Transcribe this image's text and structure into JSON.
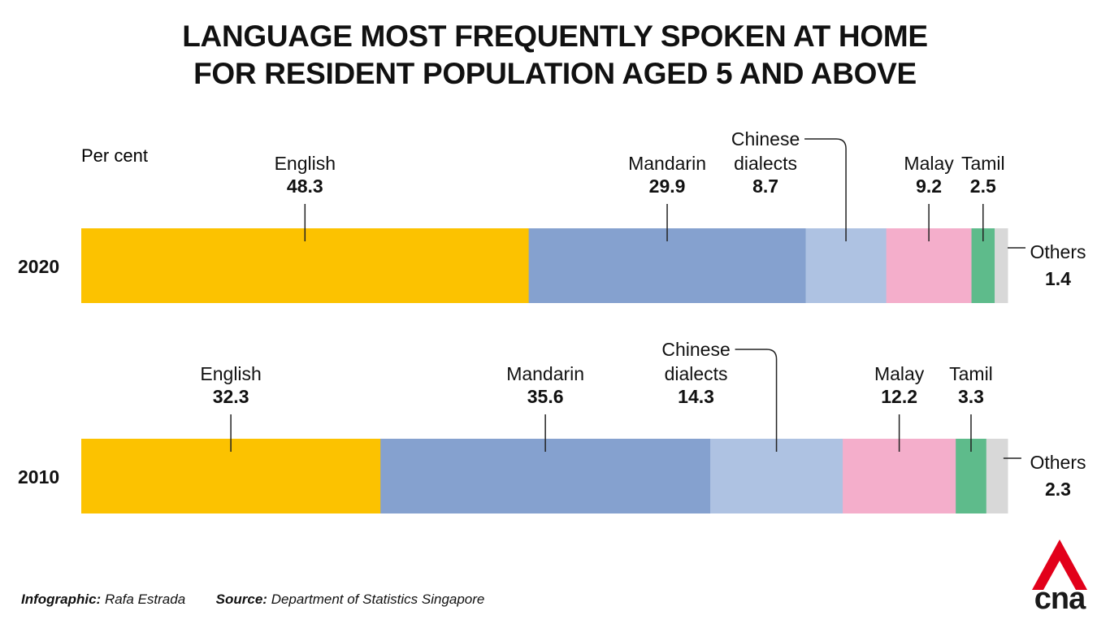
{
  "title": {
    "line1": "LANGUAGE MOST FREQUENTLY SPOKEN AT HOME",
    "line2": "FOR RESIDENT POPULATION AGED 5 AND ABOVE"
  },
  "unit_label": "Per cent",
  "chart_data": {
    "type": "bar",
    "orientation": "horizontal",
    "stacked": true,
    "title": "LANGUAGE MOST FREQUENTLY SPOKEN AT HOME FOR RESIDENT POPULATION AGED 5 AND ABOVE",
    "ylabel": "Per cent",
    "categories": [
      "2020",
      "2010"
    ],
    "series": [
      {
        "name": "English",
        "values": [
          48.3,
          32.3
        ],
        "color": "#FCC200"
      },
      {
        "name": "Mandarin",
        "values": [
          29.9,
          35.6
        ],
        "color": "#85A1CF"
      },
      {
        "name": "Chinese dialects",
        "values": [
          8.7,
          14.3
        ],
        "color": "#AEC2E2"
      },
      {
        "name": "Malay",
        "values": [
          9.2,
          12.2
        ],
        "color": "#F4AECB"
      },
      {
        "name": "Tamil",
        "values": [
          2.5,
          3.3
        ],
        "color": "#5EBB8B"
      },
      {
        "name": "Others",
        "values": [
          1.4,
          2.3
        ],
        "color": "#D8D8D8"
      }
    ],
    "value_labels": [
      [
        "48.3",
        "29.9",
        "8.7",
        "9.2",
        "2.5",
        "1.4"
      ],
      [
        "32.3",
        "35.6",
        "14.3",
        "12.2",
        "3.3",
        "2.3"
      ]
    ],
    "xlim": [
      0,
      100
    ]
  },
  "footer": {
    "credit_label": "Infographic:",
    "credit_value": "Rafa Estrada",
    "source_label": "Source:",
    "source_value": "Department of Statistics Singapore"
  },
  "logo": {
    "text": "cna",
    "color": "#E2001A"
  }
}
